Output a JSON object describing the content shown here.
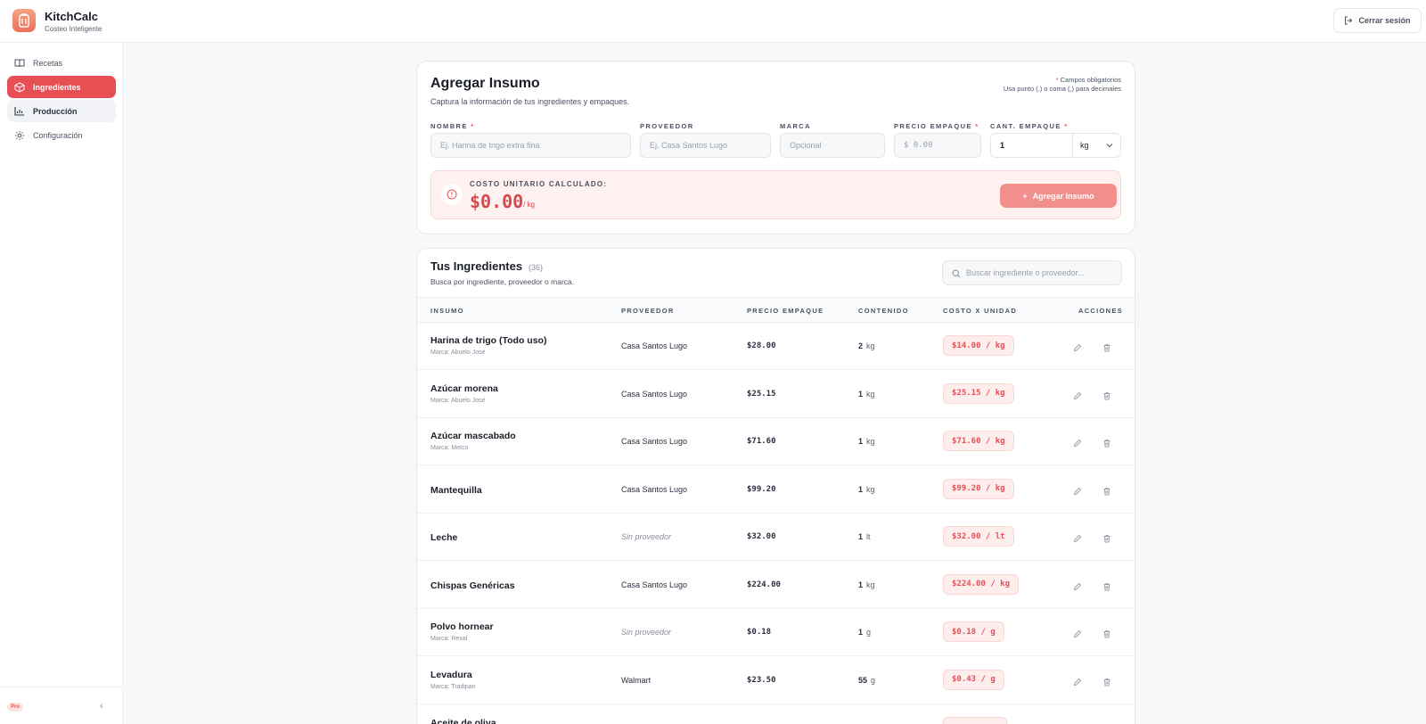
{
  "app": {
    "name": "KitchCalc",
    "tagline": "Costeo Inteligente",
    "logout_label": "Cerrar sesión"
  },
  "sidebar": {
    "items": [
      {
        "label": "Recetas",
        "icon": "book-icon"
      },
      {
        "label": "Ingredientes",
        "icon": "box-icon",
        "active": true
      },
      {
        "label": "Producción",
        "icon": "chart-icon"
      },
      {
        "label": "Configuración",
        "icon": "gear-icon"
      }
    ],
    "plan_badge": "Pro"
  },
  "form": {
    "title": "Agregar Insumo",
    "subtitle": "Captura la información de tus ingredientes y empaques.",
    "required_note": "Campos obligatorios",
    "decimal_note": "Usa punto (.) o coma (,) para decimales",
    "fields": {
      "nombre": {
        "label": "NOMBRE",
        "placeholder": "Ej. Harina de trigo extra fina"
      },
      "proveedor": {
        "label": "PROVEEDOR",
        "placeholder": "Ej. Casa Santos Lugo"
      },
      "marca": {
        "label": "MARCA",
        "placeholder": "Opcional"
      },
      "precio": {
        "label": "PRECIO EMPAQUE",
        "placeholder": "$ 0.00"
      },
      "cantidad": {
        "label": "CANT. EMPAQUE",
        "value": "1",
        "unit": "kg"
      }
    },
    "calc_label": "COSTO UNITARIO CALCULADO:",
    "calc_value": "$0.00",
    "calc_unit": "/ kg",
    "add_button": "Agregar Insumo"
  },
  "list": {
    "title": "Tus Ingredientes",
    "count": "(36)",
    "subtitle": "Busca por ingrediente, proveedor o marca.",
    "search_placeholder": "Buscar ingrediente o proveedor...",
    "columns": [
      "INSUMO",
      "PROVEEDOR",
      "PRECIO EMPAQUE",
      "CONTENIDO",
      "COSTO X UNIDAD",
      "ACCIONES"
    ],
    "rows": [
      {
        "name": "Harina de trigo (Todo uso)",
        "brand": "Marca: Abuelo José",
        "provider": "Casa Santos Lugo",
        "price": "$28.00",
        "qty": "2",
        "unit": "kg",
        "cost": "$14.00 / kg"
      },
      {
        "name": "Azúcar morena",
        "brand": "Marca: Abuelo José",
        "provider": "Casa Santos Lugo",
        "price": "$25.15",
        "qty": "1",
        "unit": "kg",
        "cost": "$25.15 / kg"
      },
      {
        "name": "Azúcar mascabado",
        "brand": "Marca: Metco",
        "provider": "Casa Santos Lugo",
        "price": "$71.60",
        "qty": "1",
        "unit": "kg",
        "cost": "$71.60 / kg"
      },
      {
        "name": "Mantequilla",
        "brand": "",
        "provider": "Casa Santos Lugo",
        "price": "$99.20",
        "qty": "1",
        "unit": "kg",
        "cost": "$99.20 / kg"
      },
      {
        "name": "Leche",
        "brand": "",
        "provider": "Sin proveedor",
        "price": "$32.00",
        "qty": "1",
        "unit": "lt",
        "cost": "$32.00 / lt"
      },
      {
        "name": "Chispas Genéricas",
        "brand": "",
        "provider": "Casa Santos Lugo",
        "price": "$224.00",
        "qty": "1",
        "unit": "kg",
        "cost": "$224.00 / kg"
      },
      {
        "name": "Polvo hornear",
        "brand": "Marca: Rexal",
        "provider": "Sin proveedor",
        "price": "$0.18",
        "qty": "1",
        "unit": "g",
        "cost": "$0.18 / g"
      },
      {
        "name": "Levadura",
        "brand": "Marca: Tradipan",
        "provider": "Walmart",
        "price": "$23.50",
        "qty": "55",
        "unit": "g",
        "cost": "$0.43 / g"
      },
      {
        "name": "Aceite de oliva",
        "brand": "",
        "provider": "",
        "price": "",
        "qty": "",
        "unit": "",
        "cost": ""
      }
    ]
  },
  "colors": {
    "accent": "#e84f55",
    "accent_soft": "#fdeeed",
    "button_disabled": "#f08f8c"
  }
}
